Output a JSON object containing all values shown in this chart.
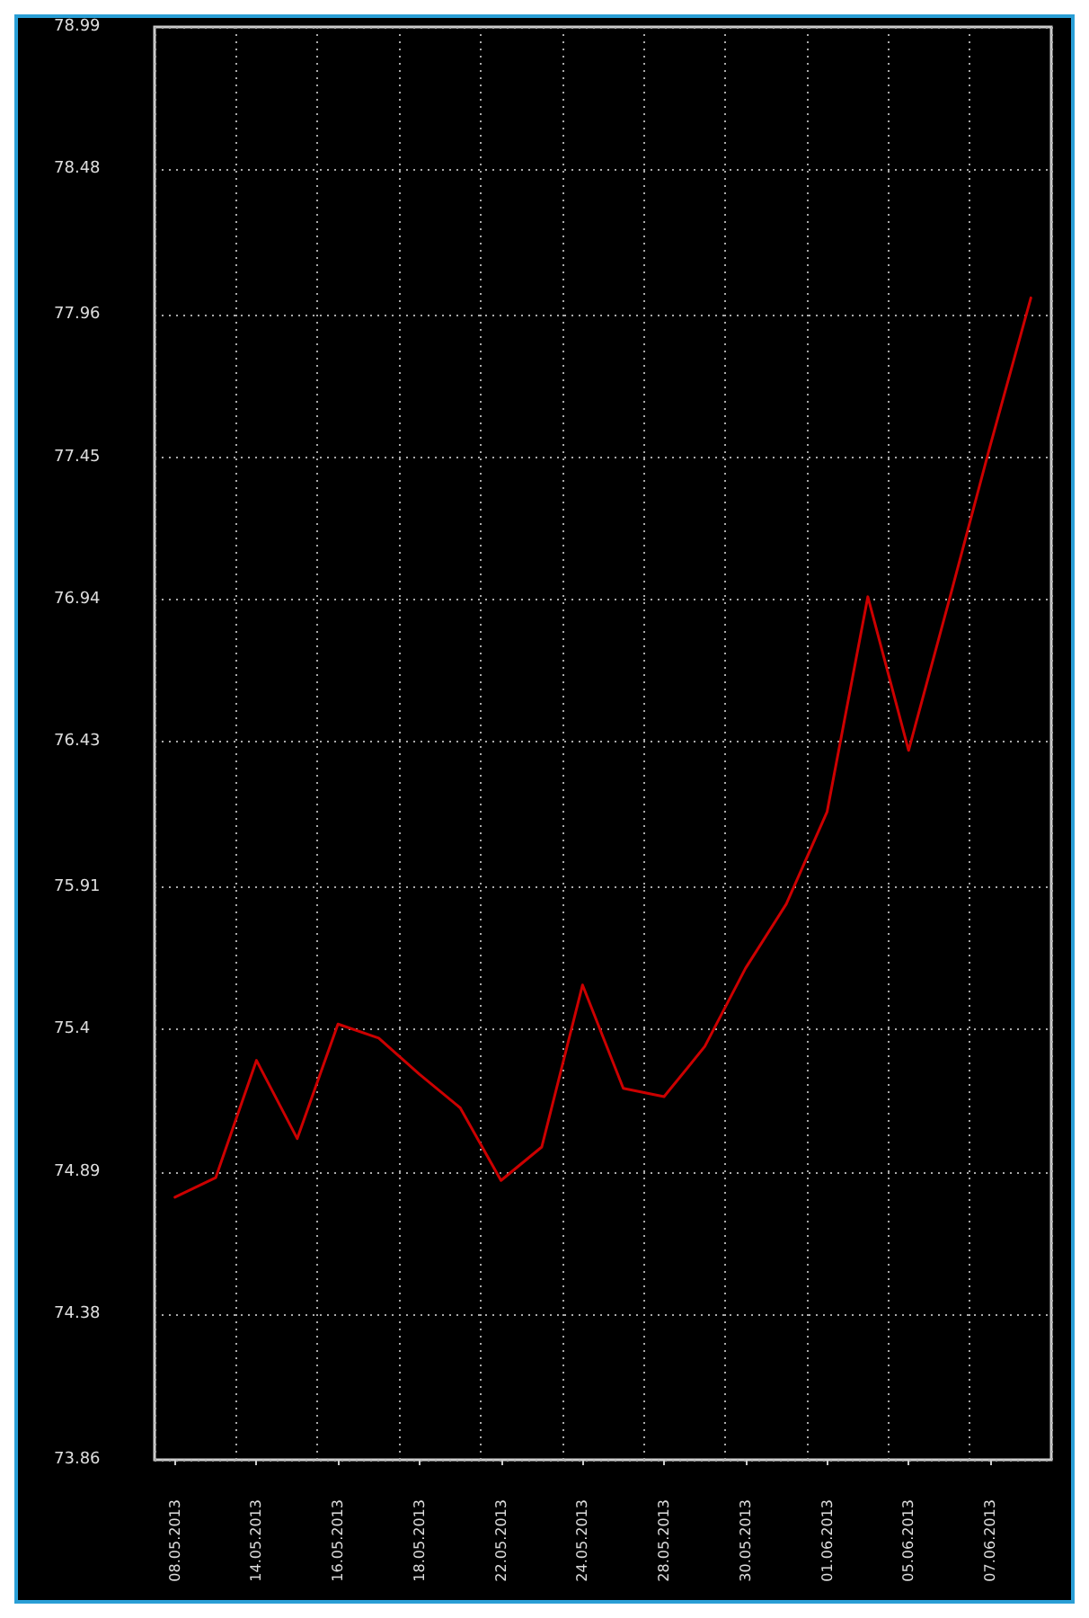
{
  "chart_data": {
    "type": "line",
    "categories": [
      "08.05.2013",
      null,
      "14.05.2013",
      null,
      "16.05.2013",
      null,
      "18.05.2013",
      null,
      "22.05.2013",
      null,
      "24.05.2013",
      null,
      "28.05.2013",
      null,
      "30.05.2013",
      null,
      "01.06.2013",
      null,
      "05.06.2013",
      null,
      "07.06.2013",
      null
    ],
    "series": [
      {
        "color": "#cc0000",
        "values": [
          74.8,
          74.87,
          75.29,
          75.01,
          75.42,
          75.37,
          75.24,
          75.12,
          74.86,
          74.98,
          75.56,
          75.19,
          75.16,
          75.34,
          75.62,
          75.85,
          76.18,
          76.95,
          76.4,
          76.94,
          77.49,
          78.02
        ]
      }
    ],
    "ylim": [
      73.86,
      78.99
    ],
    "yticks": [
      73.86,
      74.38,
      74.89,
      75.4,
      75.91,
      76.43,
      76.94,
      77.45,
      77.96,
      78.48,
      78.99
    ],
    "grid": true,
    "marker": "none",
    "line_style": "solid"
  }
}
